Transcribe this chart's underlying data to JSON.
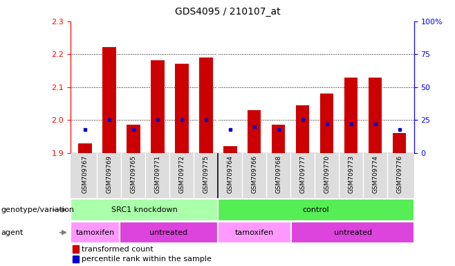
{
  "title": "GDS4095 / 210107_at",
  "samples": [
    "GSM709767",
    "GSM709769",
    "GSM709765",
    "GSM709771",
    "GSM709772",
    "GSM709775",
    "GSM709764",
    "GSM709766",
    "GSM709768",
    "GSM709777",
    "GSM709770",
    "GSM709773",
    "GSM709774",
    "GSM709776"
  ],
  "transformed_count": [
    1.93,
    2.222,
    1.985,
    2.182,
    2.172,
    2.19,
    1.92,
    2.03,
    1.985,
    2.045,
    2.08,
    2.13,
    2.13,
    1.96
  ],
  "percentile_rank": [
    18,
    25,
    18,
    25,
    25,
    25,
    18,
    20,
    18,
    25,
    22,
    22,
    22,
    18
  ],
  "baseline": 1.9,
  "ylim_left": [
    1.9,
    2.3
  ],
  "ylim_right": [
    0,
    100
  ],
  "yticks_left": [
    1.9,
    2.0,
    2.1,
    2.2,
    2.3
  ],
  "yticks_right": [
    0,
    25,
    50,
    75,
    100
  ],
  "ytick_labels_right": [
    "0",
    "25",
    "50",
    "75",
    "100%"
  ],
  "bar_color": "#cc0000",
  "percentile_color": "#0000cc",
  "groups": [
    {
      "label": "SRC1 knockdown",
      "start": 0,
      "end": 6,
      "color": "#aaffaa"
    },
    {
      "label": "control",
      "start": 6,
      "end": 14,
      "color": "#55ee55"
    }
  ],
  "agents": [
    {
      "label": "tamoxifen",
      "start": 0,
      "end": 2,
      "color": "#ff99ff"
    },
    {
      "label": "untreated",
      "start": 2,
      "end": 6,
      "color": "#dd44dd"
    },
    {
      "label": "tamoxifen",
      "start": 6,
      "end": 9,
      "color": "#ff99ff"
    },
    {
      "label": "untreated",
      "start": 9,
      "end": 14,
      "color": "#dd44dd"
    }
  ],
  "legend_items": [
    {
      "label": "transformed count",
      "color": "#cc0000"
    },
    {
      "label": "percentile rank within the sample",
      "color": "#0000cc"
    }
  ],
  "label_fontsize": 8,
  "title_fontsize": 10,
  "tick_fontsize": 7,
  "sample_fontsize": 6.5
}
